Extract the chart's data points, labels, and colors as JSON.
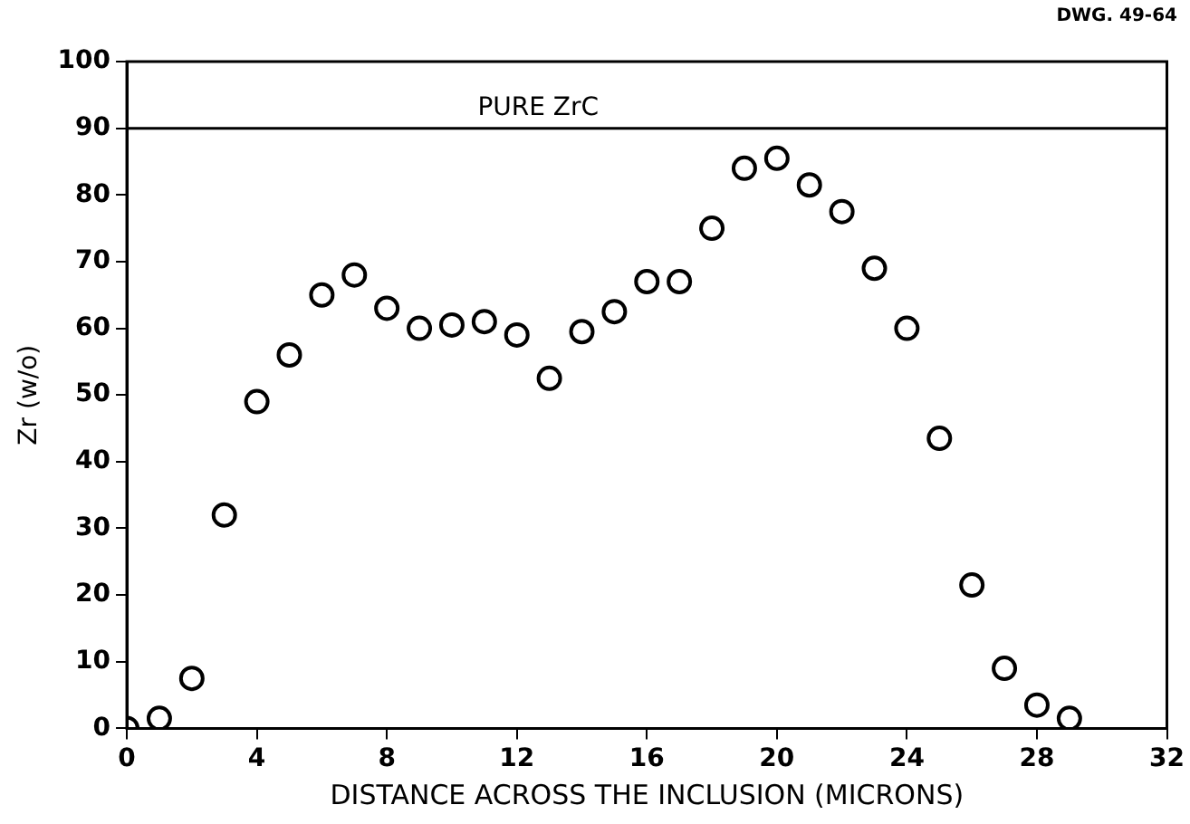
{
  "chart_data": {
    "type": "scatter",
    "xlabel": "DISTANCE ACROSS THE INCLUSION (MICRONS)",
    "ylabel": "Zr (w/o)",
    "annotations": [
      "DWG. 49-64"
    ],
    "x": [
      0,
      1,
      2,
      3,
      4,
      5,
      6,
      7,
      8,
      9,
      10,
      11,
      12,
      13,
      14,
      15,
      16,
      17,
      18,
      19,
      20,
      21,
      22,
      23,
      24,
      25,
      26,
      27,
      28,
      29
    ],
    "series": [
      {
        "color": "#000000",
        "values": [
          0,
          1.5,
          7.5,
          32,
          49,
          56,
          65,
          68,
          63,
          60,
          60.5,
          61,
          59,
          52.5,
          59.5,
          62.5,
          67,
          67,
          75,
          84,
          85.5,
          81.5,
          77.5,
          69,
          60,
          43.5,
          21.5,
          9,
          3.5,
          1.5
        ]
      }
    ],
    "xlim": [
      0,
      32
    ],
    "xticks": [
      0,
      4,
      8,
      12,
      16,
      20,
      24,
      28,
      32
    ],
    "ylim": [
      0,
      100
    ],
    "yticks": [
      0,
      10,
      20,
      30,
      40,
      50,
      60,
      70,
      80,
      90,
      100
    ],
    "ref_lines": [
      {
        "axis": "y",
        "value": 90,
        "label": "PURE ZrC",
        "color": "#000000"
      }
    ],
    "grid": false,
    "legend": false,
    "marker": "circle"
  }
}
